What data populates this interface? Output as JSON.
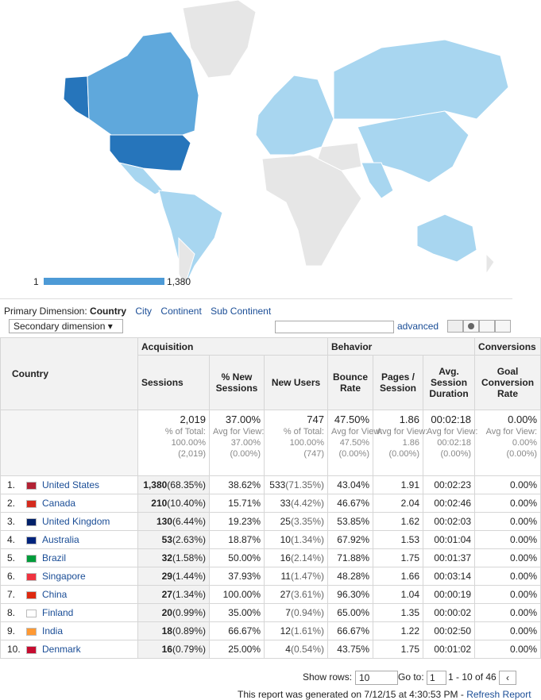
{
  "map": {
    "legend_min": "1",
    "legend_max": "1,380"
  },
  "dimension": {
    "label": "Primary Dimension:",
    "active": "Country",
    "options": [
      "City",
      "Continent",
      "Sub Continent"
    ]
  },
  "toolbar": {
    "secondary": "Secondary dimension",
    "advanced": "advanced"
  },
  "table": {
    "groups": [
      "Acquisition",
      "Behavior",
      "Conversions"
    ],
    "columns": [
      "Country",
      "Sessions",
      "% New Sessions",
      "New Users",
      "Bounce Rate",
      "Pages / Session",
      "Avg. Session Duration",
      "Goal Conversion Rate"
    ],
    "totals": [
      [
        "2,019",
        "% of Total:",
        "100.00%",
        "(2,019)"
      ],
      [
        "37.00%",
        "Avg for View:",
        "37.00%",
        "(0.00%)"
      ],
      [
        "747",
        "% of Total:",
        "100.00%",
        "(747)"
      ],
      [
        "47.50%",
        "Avg for View:",
        "47.50%",
        "(0.00%)"
      ],
      [
        "1.86",
        "Avg for View:",
        "1.86",
        "(0.00%)"
      ],
      [
        "00:02:18",
        "Avg for View:",
        "00:02:18",
        "(0.00%)"
      ],
      [
        "0.00%",
        "Avg for View:",
        "0.00%",
        "(0.00%)"
      ]
    ],
    "rows": [
      [
        "1.",
        "United States",
        "1,380",
        "(68.35%)",
        "38.62%",
        "533",
        "(71.35%)",
        "43.04%",
        "1.91",
        "00:02:23",
        "0.00%"
      ],
      [
        "2.",
        "Canada",
        "210",
        "(10.40%)",
        "15.71%",
        "33",
        "(4.42%)",
        "46.67%",
        "2.04",
        "00:02:46",
        "0.00%"
      ],
      [
        "3.",
        "United Kingdom",
        "130",
        "(6.44%)",
        "19.23%",
        "25",
        "(3.35%)",
        "53.85%",
        "1.62",
        "00:02:03",
        "0.00%"
      ],
      [
        "4.",
        "Australia",
        "53",
        "(2.63%)",
        "18.87%",
        "10",
        "(1.34%)",
        "67.92%",
        "1.53",
        "00:01:04",
        "0.00%"
      ],
      [
        "5.",
        "Brazil",
        "32",
        "(1.58%)",
        "50.00%",
        "16",
        "(2.14%)",
        "71.88%",
        "1.75",
        "00:01:37",
        "0.00%"
      ],
      [
        "6.",
        "Singapore",
        "29",
        "(1.44%)",
        "37.93%",
        "11",
        "(1.47%)",
        "48.28%",
        "1.66",
        "00:03:14",
        "0.00%"
      ],
      [
        "7.",
        "China",
        "27",
        "(1.34%)",
        "100.00%",
        "27",
        "(3.61%)",
        "96.30%",
        "1.04",
        "00:00:19",
        "0.00%"
      ],
      [
        "8.",
        "Finland",
        "20",
        "(0.99%)",
        "35.00%",
        "7",
        "(0.94%)",
        "65.00%",
        "1.35",
        "00:00:02",
        "0.00%"
      ],
      [
        "9.",
        "India",
        "18",
        "(0.89%)",
        "66.67%",
        "12",
        "(1.61%)",
        "66.67%",
        "1.22",
        "00:02:50",
        "0.00%"
      ],
      [
        "10.",
        "Denmark",
        "16",
        "(0.79%)",
        "25.00%",
        "4",
        "(0.54%)",
        "43.75%",
        "1.75",
        "00:01:02",
        "0.00%"
      ]
    ]
  },
  "footer": {
    "show_rows": "Show rows:",
    "rows_value": "10",
    "goto": "Go to:",
    "goto_value": "1",
    "range": "1 - 10 of 46",
    "generated": "This report was generated on 7/12/15 at 4:30:53 PM -",
    "refresh": "Refresh Report"
  }
}
